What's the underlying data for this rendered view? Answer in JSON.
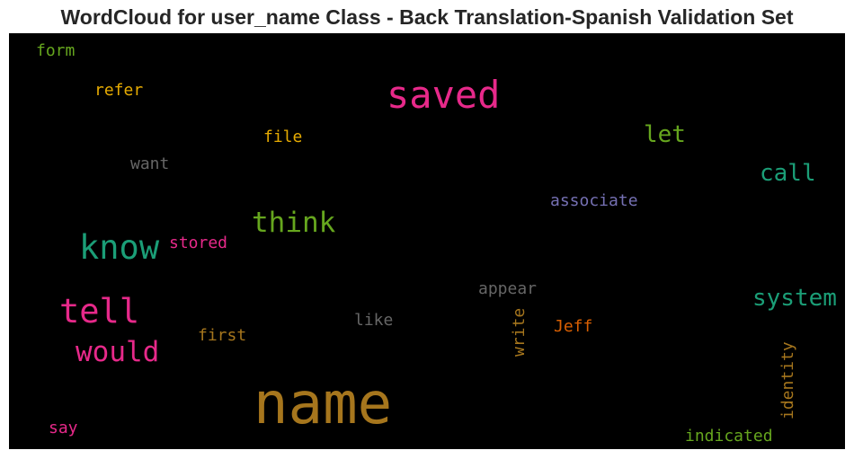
{
  "title": "WordCloud for user_name Class - Back Translation-Spanish Validation Set",
  "words": {
    "name": {
      "text": "name",
      "color": "#a6761d"
    },
    "saved": {
      "text": "saved",
      "color": "#e7298a"
    },
    "know": {
      "text": "know",
      "color": "#1b9e77"
    },
    "tell": {
      "text": "tell",
      "color": "#e7298a"
    },
    "think": {
      "text": "think",
      "color": "#66a61e"
    },
    "would": {
      "text": "would",
      "color": "#e7298a"
    },
    "system": {
      "text": "system",
      "color": "#1b9e77"
    },
    "call": {
      "text": "call",
      "color": "#1b9e77"
    },
    "let": {
      "text": "let",
      "color": "#66a61e"
    },
    "associate": {
      "text": "associate",
      "color": "#7570b3"
    },
    "appear": {
      "text": "appear",
      "color": "#666666"
    },
    "like": {
      "text": "like",
      "color": "#666666"
    },
    "first": {
      "text": "first",
      "color": "#a6761d"
    },
    "stored": {
      "text": "stored",
      "color": "#e7298a"
    },
    "want": {
      "text": "want",
      "color": "#666666"
    },
    "file": {
      "text": "file",
      "color": "#e6ab02"
    },
    "refer": {
      "text": "refer",
      "color": "#e6ab02"
    },
    "form": {
      "text": "form",
      "color": "#66a61e"
    },
    "write": {
      "text": "write",
      "color": "#a6761d"
    },
    "jeff": {
      "text": "Jeff",
      "color": "#d95f02"
    },
    "identity": {
      "text": "identity",
      "color": "#a6761d"
    },
    "indicated": {
      "text": "indicated",
      "color": "#66a61e"
    },
    "say": {
      "text": "say",
      "color": "#e7298a"
    }
  }
}
